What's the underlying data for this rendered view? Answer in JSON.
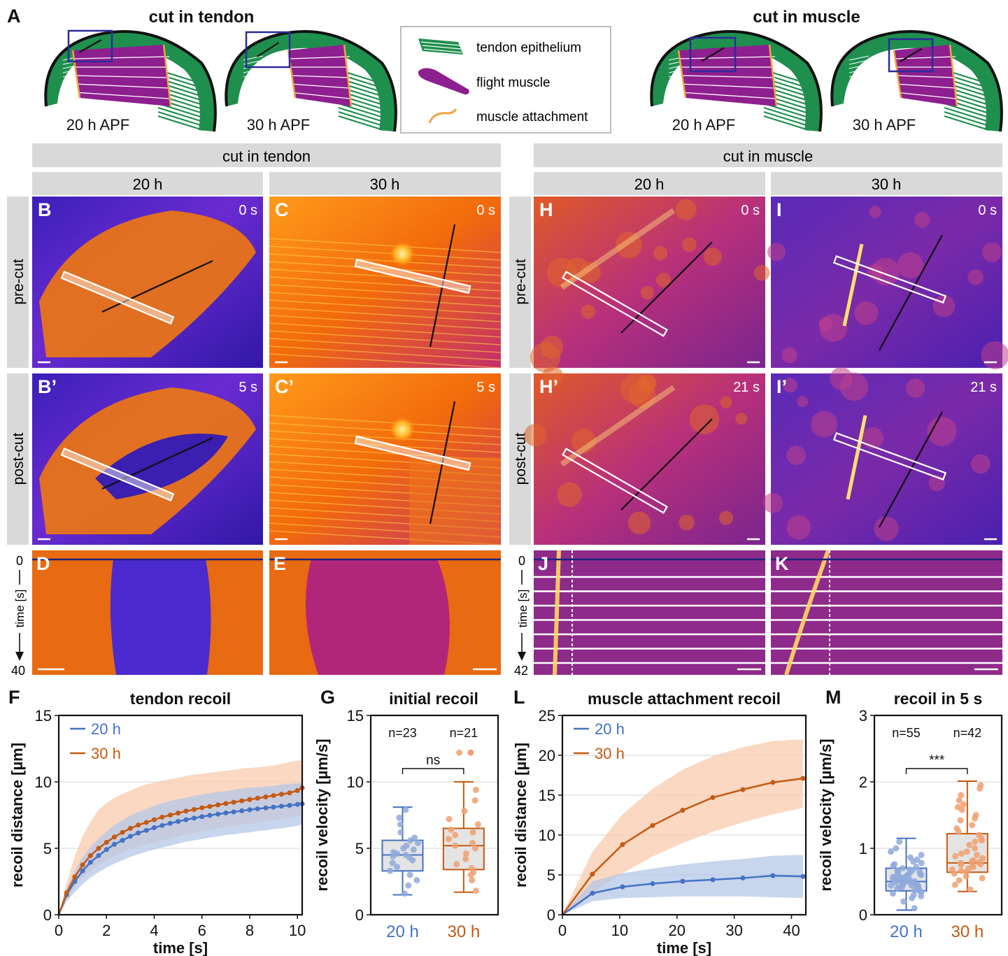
{
  "colors": {
    "c20": "#4472c4",
    "c30": "#c55a11",
    "band20": "#b4c7e7",
    "band30": "#f8cbad",
    "tendon": "#1f8f4e",
    "muscle": "#8e1f8f",
    "attach": "#f4a340",
    "headerGray": "#d9d9d9",
    "roi": "#ffffff",
    "cutLine": "#111111",
    "kymoLine": "#1a237e"
  },
  "panelA": {
    "letter": "A",
    "tendonTitle": "cut in tendon",
    "muscleTitle": "cut in muscle",
    "stages": [
      "20 h APF",
      "30 h APF",
      "20 h APF",
      "30 h APF"
    ],
    "legend": [
      {
        "icon": "tendon-epithelium-icon",
        "label": "tendon epithelium"
      },
      {
        "icon": "flight-muscle-icon",
        "label": "flight muscle"
      },
      {
        "icon": "muscle-attachment-icon",
        "label": "muscle attachment"
      }
    ]
  },
  "imaging": {
    "headers": {
      "tendon": "cut in tendon",
      "muscle": "cut in muscle"
    },
    "columns": [
      "20 h",
      "30 h",
      "20 h",
      "30 h"
    ],
    "rows": [
      "pre-cut",
      "post-cut"
    ],
    "panels": [
      {
        "letter": "B",
        "time": "0 s",
        "cmap": "fire"
      },
      {
        "letter": "C",
        "time": "0 s",
        "cmap": "fire"
      },
      {
        "letter": "H",
        "time": "0 s",
        "cmap": "fire"
      },
      {
        "letter": "I",
        "time": "0 s",
        "cmap": "fire"
      },
      {
        "letter": "B’",
        "time": "5 s",
        "cmap": "fire"
      },
      {
        "letter": "C’",
        "time": "5 s",
        "cmap": "fire"
      },
      {
        "letter": "H’",
        "time": "21 s",
        "cmap": "fire"
      },
      {
        "letter": "I’",
        "time": "21 s",
        "cmap": "fire"
      }
    ],
    "kymographs": [
      {
        "letter": "D"
      },
      {
        "letter": "E"
      },
      {
        "letter": "J"
      },
      {
        "letter": "K"
      }
    ],
    "kymoAxisTendon": {
      "start": "0",
      "end": "40",
      "label": "time [s]"
    },
    "kymoAxisMuscle": {
      "start": "0",
      "end": "42",
      "label": "time [s]"
    }
  },
  "chart_data": [
    {
      "panel": "F",
      "type": "line",
      "title": "tendon recoil",
      "xlabel": "time [s]",
      "ylabel": "recoil distance [µm]",
      "xlim": [
        0,
        10.2
      ],
      "ylim": [
        0,
        15
      ],
      "xticks": [
        0,
        2,
        4,
        6,
        8,
        10
      ],
      "yticks": [
        0,
        5,
        10,
        15
      ],
      "grid": "horizontal",
      "legend_position": "top-left",
      "x": [
        0,
        0.33,
        0.67,
        1.0,
        1.33,
        1.67,
        2.0,
        2.33,
        2.67,
        3.0,
        3.33,
        3.67,
        4.0,
        4.33,
        4.67,
        5.0,
        5.33,
        5.67,
        6.0,
        6.33,
        6.67,
        7.0,
        7.33,
        7.67,
        8.0,
        8.33,
        8.67,
        9.0,
        9.33,
        9.67,
        10.0,
        10.2
      ],
      "series": [
        {
          "name": "20 h",
          "values": [
            0,
            1.5,
            2.5,
            3.3,
            3.95,
            4.45,
            4.9,
            5.3,
            5.6,
            5.9,
            6.15,
            6.35,
            6.55,
            6.72,
            6.88,
            7.02,
            7.15,
            7.27,
            7.38,
            7.48,
            7.57,
            7.66,
            7.74,
            7.82,
            7.9,
            7.97,
            8.04,
            8.1,
            8.17,
            8.23,
            8.3,
            8.35
          ],
          "lower": [
            0,
            1.0,
            1.7,
            2.3,
            2.8,
            3.2,
            3.55,
            3.85,
            4.1,
            4.35,
            4.55,
            4.75,
            4.9,
            5.05,
            5.2,
            5.35,
            5.5,
            5.6,
            5.7,
            5.8,
            5.9,
            6.0,
            6.05,
            6.15,
            6.2,
            6.3,
            6.35,
            6.45,
            6.5,
            6.6,
            6.7,
            6.8
          ],
          "upper": [
            0,
            2.0,
            3.3,
            4.3,
            5.1,
            5.7,
            6.25,
            6.75,
            7.1,
            7.45,
            7.75,
            7.95,
            8.2,
            8.4,
            8.55,
            8.7,
            8.8,
            8.95,
            9.05,
            9.15,
            9.25,
            9.3,
            9.4,
            9.5,
            9.55,
            9.6,
            9.65,
            9.7,
            9.8,
            9.85,
            9.9,
            9.95
          ]
        },
        {
          "name": "30 h",
          "values": [
            0,
            1.65,
            2.85,
            3.75,
            4.45,
            5.0,
            5.45,
            5.85,
            6.2,
            6.5,
            6.75,
            6.95,
            7.15,
            7.35,
            7.5,
            7.65,
            7.8,
            7.92,
            8.05,
            8.15,
            8.27,
            8.37,
            8.47,
            8.57,
            8.67,
            8.77,
            8.87,
            8.97,
            9.07,
            9.17,
            9.35,
            9.55
          ],
          "lower": [
            0,
            1.2,
            2.1,
            2.8,
            3.35,
            3.8,
            4.15,
            4.45,
            4.7,
            4.95,
            5.15,
            5.3,
            5.45,
            5.6,
            5.75,
            5.9,
            6.05,
            6.15,
            6.3,
            6.4,
            6.5,
            6.6,
            6.7,
            6.8,
            6.85,
            6.95,
            7.05,
            7.15,
            7.2,
            7.3,
            7.4,
            7.5
          ],
          "upper": [
            0,
            2.4,
            4.4,
            5.9,
            7.0,
            7.9,
            8.4,
            8.8,
            9.1,
            9.35,
            9.6,
            9.8,
            9.95,
            10.1,
            10.2,
            10.3,
            10.45,
            10.55,
            10.6,
            10.7,
            10.75,
            10.85,
            10.9,
            11.0,
            11.05,
            11.1,
            11.15,
            11.25,
            11.35,
            11.5,
            11.6,
            11.6
          ]
        }
      ]
    },
    {
      "panel": "G",
      "type": "box",
      "title": "initial recoil",
      "xlabel": "",
      "ylabel": "recoil velocity [µm/s]",
      "ylim": [
        0,
        15
      ],
      "yticks": [
        0,
        5,
        10,
        15
      ],
      "grid": "horizontal",
      "categories": [
        "20 h",
        "30 h"
      ],
      "counts": [
        "n=23",
        "n=21"
      ],
      "significance": "ns",
      "boxes": [
        {
          "min": 1.5,
          "q1": 3.3,
          "median": 4.5,
          "q3": 5.6,
          "max": 8.1,
          "outliers": []
        },
        {
          "min": 1.7,
          "q1": 3.4,
          "median": 5.2,
          "q3": 6.5,
          "max": 10.0,
          "outliers": [
            12.2
          ]
        }
      ],
      "points": [
        [
          2.2,
          3.0,
          3.3,
          3.6,
          3.9,
          4.1,
          4.3,
          4.4,
          4.5,
          4.6,
          4.7,
          4.9,
          5.0,
          5.2,
          5.4,
          5.6,
          5.8,
          6.2,
          6.8,
          7.3,
          7.9,
          2.6,
          1.6
        ],
        [
          1.8,
          2.6,
          3.2,
          3.5,
          3.8,
          4.2,
          4.6,
          5.0,
          5.2,
          5.4,
          5.7,
          6.0,
          6.2,
          6.4,
          6.8,
          7.2,
          7.8,
          8.6,
          9.4,
          3.0,
          12.2
        ]
      ]
    },
    {
      "panel": "L",
      "type": "line",
      "title": "muscle attachment recoil",
      "xlabel": "time [s]",
      "ylabel": "recoil distance [µm]",
      "xlim": [
        0,
        42.5
      ],
      "ylim": [
        0,
        25
      ],
      "xticks": [
        0,
        10,
        20,
        30,
        40
      ],
      "yticks": [
        0,
        5,
        10,
        15,
        20,
        25
      ],
      "grid": "horizontal",
      "legend_position": "top-left",
      "x": [
        0,
        5.25,
        10.5,
        15.75,
        21,
        26.25,
        31.5,
        36.75,
        42
      ],
      "series": [
        {
          "name": "20 h",
          "values": [
            0,
            2.7,
            3.5,
            3.9,
            4.2,
            4.4,
            4.6,
            4.9,
            4.8
          ],
          "lower": [
            0,
            1.7,
            2.1,
            2.2,
            2.3,
            2.3,
            2.3,
            2.2,
            2.1
          ],
          "upper": [
            0,
            4.2,
            5.2,
            5.8,
            6.3,
            6.7,
            7.0,
            7.4,
            7.5
          ]
        },
        {
          "name": "30 h",
          "values": [
            0,
            5.1,
            8.8,
            11.2,
            13.1,
            14.7,
            15.7,
            16.6,
            17.1
          ],
          "lower": [
            0,
            2.8,
            5.2,
            7.3,
            9.0,
            10.4,
            11.6,
            12.6,
            13.4
          ],
          "upper": [
            0,
            7.9,
            12.6,
            15.8,
            18.2,
            19.9,
            21.0,
            21.8,
            22.0
          ]
        }
      ]
    },
    {
      "panel": "M",
      "type": "box",
      "title": "recoil in 5 s",
      "xlabel": "",
      "ylabel": "recoil velocity [µm/s]",
      "ylim": [
        0,
        3
      ],
      "yticks": [
        0,
        1,
        2,
        3
      ],
      "grid": "horizontal",
      "categories": [
        "20 h",
        "30 h"
      ],
      "counts": [
        "n=55",
        "n=42"
      ],
      "significance": "***",
      "boxes": [
        {
          "min": 0.07,
          "q1": 0.36,
          "median": 0.5,
          "q3": 0.7,
          "max": 1.15,
          "outliers": []
        },
        {
          "min": 0.35,
          "q1": 0.64,
          "median": 0.78,
          "q3": 1.22,
          "max": 2.01,
          "outliers": []
        }
      ],
      "points": [
        [
          0.1,
          0.2,
          0.25,
          0.3,
          0.32,
          0.35,
          0.37,
          0.38,
          0.4,
          0.41,
          0.42,
          0.43,
          0.44,
          0.45,
          0.46,
          0.47,
          0.48,
          0.49,
          0.5,
          0.5,
          0.51,
          0.52,
          0.53,
          0.54,
          0.55,
          0.56,
          0.57,
          0.58,
          0.59,
          0.6,
          0.61,
          0.62,
          0.63,
          0.64,
          0.65,
          0.66,
          0.67,
          0.68,
          0.7,
          0.72,
          0.74,
          0.76,
          0.78,
          0.8,
          0.83,
          0.86,
          0.9,
          0.95,
          1.0,
          1.1,
          0.28,
          0.34,
          0.44,
          0.52,
          0.6
        ],
        [
          0.38,
          0.45,
          0.52,
          0.58,
          0.62,
          0.65,
          0.68,
          0.7,
          0.72,
          0.74,
          0.76,
          0.78,
          0.79,
          0.8,
          0.82,
          0.85,
          0.88,
          0.92,
          0.95,
          1.0,
          1.05,
          1.1,
          1.15,
          1.2,
          1.25,
          1.3,
          1.35,
          1.42,
          1.5,
          1.58,
          1.66,
          1.72,
          1.8,
          1.9,
          1.95,
          0.55,
          0.66,
          0.75,
          0.9,
          1.12,
          1.45,
          1.62
        ]
      ]
    }
  ]
}
